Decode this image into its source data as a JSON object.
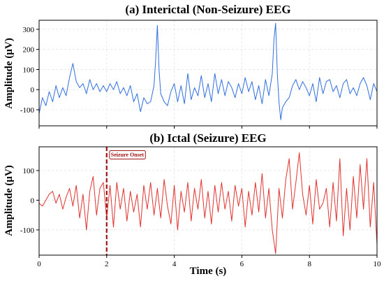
{
  "chart_data": [
    {
      "type": "line",
      "title": "(a) Interictal (Non-Seizure) EEG",
      "xlabel": "",
      "ylabel": "Amplitude (μV)",
      "xlim": [
        0,
        10
      ],
      "ylim": [
        -180,
        345
      ],
      "yticks": [
        -100,
        0,
        100,
        200,
        300
      ],
      "xticks": [
        0,
        2,
        4,
        6,
        8,
        10
      ],
      "show_xtick_labels": false,
      "grid": true,
      "color": "#2f6fe0",
      "series": [
        {
          "x": [
            0,
            0.1,
            0.2,
            0.3,
            0.4,
            0.5,
            0.6,
            0.7,
            0.8,
            0.9,
            1.0,
            1.1,
            1.2,
            1.3,
            1.4,
            1.5,
            1.6,
            1.7,
            1.8,
            1.9,
            2.0,
            2.1,
            2.2,
            2.3,
            2.4,
            2.5,
            2.6,
            2.7,
            2.8,
            2.9,
            3.0,
            3.1,
            3.2,
            3.3,
            3.4,
            3.45,
            3.5,
            3.55,
            3.6,
            3.7,
            3.8,
            3.9,
            4.0,
            4.1,
            4.2,
            4.3,
            4.4,
            4.5,
            4.6,
            4.7,
            4.8,
            4.9,
            5.0,
            5.1,
            5.2,
            5.3,
            5.4,
            5.5,
            5.6,
            5.7,
            5.8,
            5.9,
            6.0,
            6.1,
            6.2,
            6.3,
            6.4,
            6.5,
            6.6,
            6.7,
            6.8,
            6.9,
            6.95,
            7.0,
            7.05,
            7.1,
            7.15,
            7.2,
            7.3,
            7.4,
            7.5,
            7.6,
            7.7,
            7.8,
            7.9,
            8.0,
            8.1,
            8.2,
            8.3,
            8.4,
            8.5,
            8.6,
            8.7,
            8.8,
            8.9,
            9.0,
            9.1,
            9.2,
            9.3,
            9.4,
            9.5,
            9.6,
            9.7,
            9.8,
            9.9,
            10.0
          ],
          "y": [
            -120,
            -40,
            -80,
            -10,
            -60,
            20,
            -40,
            10,
            -30,
            60,
            130,
            40,
            10,
            30,
            -20,
            50,
            0,
            30,
            -10,
            20,
            -10,
            30,
            0,
            40,
            -20,
            10,
            -30,
            20,
            -60,
            -20,
            -110,
            -40,
            -70,
            -60,
            20,
            150,
            320,
            100,
            -20,
            -60,
            -80,
            -10,
            30,
            -60,
            20,
            -70,
            80,
            -50,
            10,
            -30,
            70,
            -40,
            30,
            -60,
            80,
            -20,
            50,
            -30,
            40,
            10,
            -40,
            30,
            -20,
            60,
            -10,
            40,
            -50,
            20,
            -70,
            50,
            -30,
            80,
            250,
            330,
            80,
            -60,
            -150,
            -90,
            -60,
            -40,
            20,
            50,
            0,
            40,
            10,
            -30,
            30,
            -60,
            60,
            -20,
            40,
            50,
            -10,
            20,
            -40,
            30,
            50,
            -20,
            10,
            -30,
            30,
            60,
            20,
            -50,
            30,
            -10
          ]
        }
      ]
    },
    {
      "type": "line",
      "title": "(b) Ictal (Seizure) EEG",
      "xlabel": "Time (s)",
      "ylabel": "Amplitude (μV)",
      "xlim": [
        0,
        10
      ],
      "ylim": [
        -185,
        180
      ],
      "yticks": [
        -100,
        0,
        100
      ],
      "xticks": [
        0,
        2,
        4,
        6,
        8,
        10
      ],
      "grid": true,
      "color": "#e0332f",
      "annotation": {
        "x": 2,
        "label": "Seizure Onset",
        "color": "#a01414"
      },
      "series": [
        {
          "x": [
            0,
            0.1,
            0.2,
            0.3,
            0.4,
            0.5,
            0.6,
            0.7,
            0.8,
            0.9,
            1.0,
            1.1,
            1.2,
            1.3,
            1.4,
            1.5,
            1.6,
            1.7,
            1.8,
            1.9,
            2.0,
            2.1,
            2.2,
            2.3,
            2.4,
            2.5,
            2.6,
            2.7,
            2.8,
            2.9,
            3.0,
            3.1,
            3.2,
            3.3,
            3.4,
            3.5,
            3.6,
            3.7,
            3.8,
            3.9,
            4.0,
            4.1,
            4.2,
            4.3,
            4.4,
            4.5,
            4.6,
            4.7,
            4.8,
            4.9,
            5.0,
            5.1,
            5.2,
            5.3,
            5.4,
            5.5,
            5.6,
            5.7,
            5.8,
            5.9,
            6.0,
            6.1,
            6.2,
            6.3,
            6.4,
            6.5,
            6.6,
            6.7,
            6.8,
            6.9,
            7.0,
            7.1,
            7.2,
            7.3,
            7.4,
            7.5,
            7.6,
            7.7,
            7.8,
            7.9,
            8.0,
            8.1,
            8.2,
            8.3,
            8.4,
            8.5,
            8.6,
            8.7,
            8.8,
            8.9,
            9.0,
            9.1,
            9.2,
            9.3,
            9.4,
            9.5,
            9.6,
            9.7,
            9.8,
            9.9,
            10.0
          ],
          "y": [
            -10,
            -20,
            0,
            20,
            30,
            -10,
            20,
            -30,
            10,
            40,
            -20,
            50,
            -60,
            20,
            -100,
            30,
            80,
            -50,
            40,
            60,
            -60,
            50,
            -90,
            60,
            -30,
            40,
            -70,
            30,
            -40,
            20,
            -90,
            50,
            -30,
            60,
            -50,
            40,
            -60,
            70,
            -20,
            -80,
            50,
            -100,
            30,
            -40,
            60,
            -70,
            40,
            -30,
            70,
            -60,
            30,
            -80,
            50,
            -40,
            60,
            -30,
            30,
            -70,
            50,
            -20,
            40,
            -90,
            30,
            -50,
            60,
            -40,
            90,
            -60,
            40,
            -100,
            -180,
            40,
            -60,
            70,
            140,
            -30,
            60,
            160,
            20,
            -50,
            50,
            -80,
            70,
            -30,
            -10,
            40,
            -90,
            60,
            -70,
            140,
            -120,
            40,
            -100,
            80,
            -60,
            120,
            -30,
            140,
            -90,
            60,
            -150
          ]
        }
      ]
    }
  ]
}
